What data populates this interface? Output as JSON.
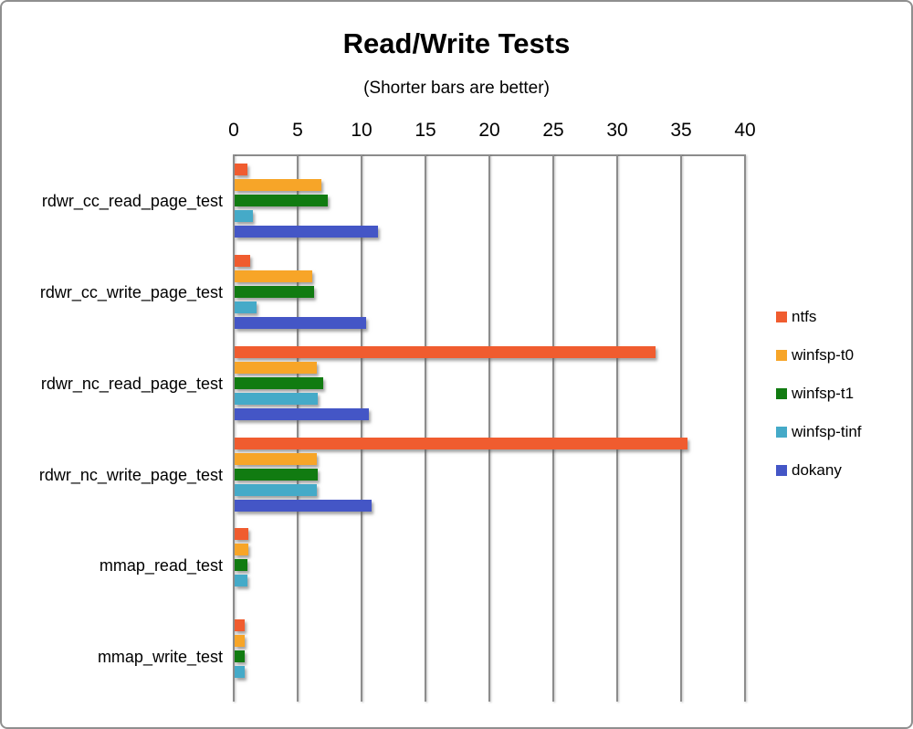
{
  "window_title": "Read/Write Tests benchmark chart",
  "chart_data": {
    "type": "bar",
    "orientation": "horizontal",
    "title": "Read/Write Tests",
    "subtitle": "(Shorter bars are better)",
    "xlabel": "",
    "ylabel": "",
    "xlim": [
      0,
      40
    ],
    "xticks": [
      0,
      5,
      10,
      15,
      20,
      25,
      30,
      35,
      40
    ],
    "grid": true,
    "legend_position": "right",
    "categories": [
      "rdwr_cc_read_page_test",
      "rdwr_cc_write_page_test",
      "rdwr_nc_read_page_test",
      "rdwr_nc_write_page_test",
      "mmap_read_test",
      "mmap_write_test"
    ],
    "series": [
      {
        "name": "ntfs",
        "color": "#F05C2F",
        "values": [
          1.0,
          1.2,
          32.9,
          35.4,
          1.1,
          0.8
        ]
      },
      {
        "name": "winfsp-t0",
        "color": "#F7A528",
        "values": [
          6.8,
          6.1,
          6.4,
          6.4,
          1.1,
          0.8
        ]
      },
      {
        "name": "winfsp-t1",
        "color": "#117B11",
        "values": [
          7.3,
          6.2,
          6.9,
          6.5,
          1.0,
          0.8
        ]
      },
      {
        "name": "winfsp-tinf",
        "color": "#45AAC8",
        "values": [
          1.4,
          1.7,
          6.5,
          6.4,
          1.0,
          0.8
        ]
      },
      {
        "name": "dokany",
        "color": "#4456C6",
        "values": [
          11.2,
          10.3,
          10.5,
          10.7,
          null,
          null
        ]
      }
    ],
    "colors": {
      "gridline": "#8c8c8c",
      "text": "#000000",
      "background": "#ffffff",
      "window_border": "#8f8f8f"
    }
  }
}
